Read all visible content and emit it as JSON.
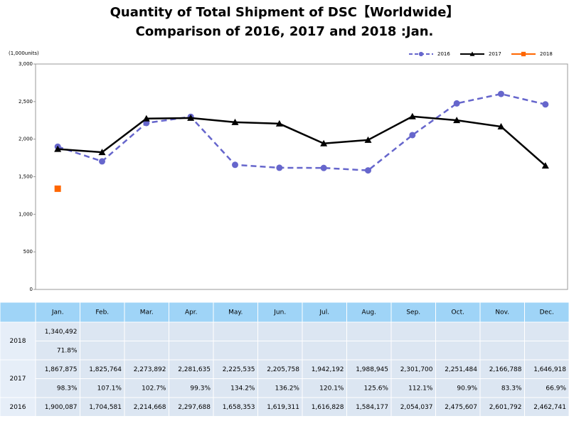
{
  "chart_data": {
    "type": "line",
    "title": "Quantity of Total Shipment of DSC【Worldwide】",
    "subtitle": "Comparison of 2016, 2017 and 2018 :Jan.",
    "y_label": "(1,000units)",
    "categories": [
      "Jan.",
      "Feb.",
      "Mar.",
      "Apr.",
      "May.",
      "Jun.",
      "Jul.",
      "Aug.",
      "Sep.",
      "Oct.",
      "Nov.",
      "Dec."
    ],
    "ylim": [
      0,
      3000
    ],
    "yticks": [
      0,
      500,
      {
        "value": 1000,
        "label": "1,000"
      },
      {
        "value": 1500,
        "label": "1,500"
      },
      {
        "value": 2000,
        "label": "2,000"
      },
      {
        "value": 2500,
        "label": "2,500"
      },
      {
        "value": 3000,
        "label": "3,000"
      }
    ],
    "grid": false,
    "legend": "top-right",
    "series": [
      {
        "name": "2016",
        "color": "#6666cc",
        "dash": true,
        "marker": "circle",
        "values": [
          1900.087,
          1704.581,
          2214.668,
          2297.688,
          1658.353,
          1619.311,
          1616.828,
          1584.177,
          2054.037,
          2475.607,
          2601.792,
          2462.741
        ],
        "value_labels": [
          "1,900,087",
          "1,704,581",
          "2,214,668",
          "2,297,688",
          "1,658,353",
          "1,619,311",
          "1,616,828",
          "1,584,177",
          "2,054,037",
          "2,475,607",
          "2,601,792",
          "2,462,741"
        ]
      },
      {
        "name": "2017",
        "color": "#000000",
        "dash": false,
        "marker": "triangle",
        "values": [
          1867.875,
          1825.764,
          2273.892,
          2281.635,
          2225.535,
          2205.758,
          1942.192,
          1988.945,
          2301.7,
          2251.484,
          2166.788,
          1646.918
        ],
        "value_labels": [
          "1,867,875",
          "1,825,764",
          "2,273,892",
          "2,281,635",
          "2,225,535",
          "2,205,758",
          "1,942,192",
          "1,988,945",
          "2,301,700",
          "2,251,484",
          "2,166,788",
          "1,646,918"
        ],
        "ratio_labels": [
          "98.3%",
          "107.1%",
          "102.7%",
          "99.3%",
          "134.2%",
          "136.2%",
          "120.1%",
          "125.6%",
          "112.1%",
          "90.9%",
          "83.3%",
          "66.9%"
        ]
      },
      {
        "name": "2018",
        "color": "#ff6600",
        "dash": false,
        "marker": "square",
        "values": [
          1340.492,
          null,
          null,
          null,
          null,
          null,
          null,
          null,
          null,
          null,
          null,
          null
        ],
        "value_labels": [
          "1,340,492",
          null,
          null,
          null,
          null,
          null,
          null,
          null,
          null,
          null,
          null,
          null
        ],
        "ratio_labels": [
          "71.8%",
          null,
          null,
          null,
          null,
          null,
          null,
          null,
          null,
          null,
          null,
          null
        ]
      }
    ]
  }
}
